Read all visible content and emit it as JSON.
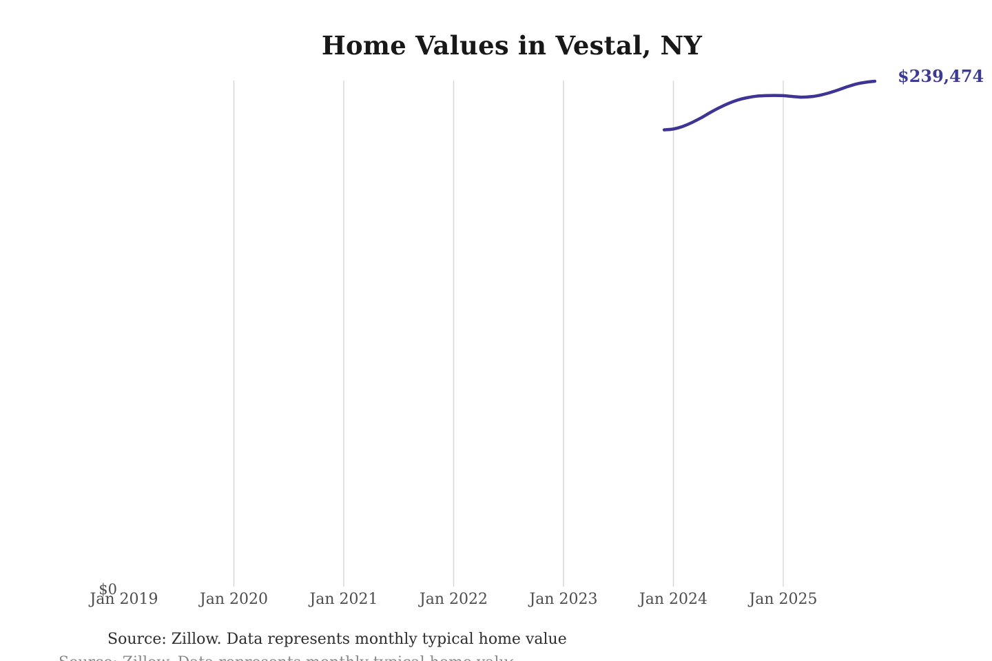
{
  "chart_data": {
    "type": "line",
    "title": "Home Values in Vestal, NY",
    "grid": "vertical-only",
    "legend": "none",
    "x_axis": {
      "ticks": [
        {
          "label": "Jan 2019",
          "month": "2019-01",
          "gridline": false
        },
        {
          "label": "Jan 2020",
          "month": "2020-01",
          "gridline": true
        },
        {
          "label": "Jan 2021",
          "month": "2021-01",
          "gridline": true
        },
        {
          "label": "Jan 2022",
          "month": "2022-01",
          "gridline": true
        },
        {
          "label": "Jan 2023",
          "month": "2023-01",
          "gridline": true
        },
        {
          "label": "Jan 2024",
          "month": "2024-01",
          "gridline": true
        },
        {
          "label": "Jan 2025",
          "month": "2025-01",
          "gridline": true
        }
      ]
    },
    "y_axis": {
      "ticks": [
        {
          "label": "$0",
          "value": 0
        }
      ],
      "range": [
        0,
        240000
      ]
    },
    "series": [
      {
        "name": "Monthly typical home value",
        "color": "#3d3494",
        "x": [
          "2023-12",
          "2024-01",
          "2024-02",
          "2024-03",
          "2024-04",
          "2024-05",
          "2024-06",
          "2024-07",
          "2024-08",
          "2024-09",
          "2024-10",
          "2024-11",
          "2024-12",
          "2025-01",
          "2025-02",
          "2025-03",
          "2025-04",
          "2025-05",
          "2025-06",
          "2025-07",
          "2025-08",
          "2025-09",
          "2025-10",
          "2025-11"
        ],
        "values": [
          216600,
          217000,
          218200,
          220000,
          222200,
          224700,
          227000,
          229000,
          230600,
          231700,
          232400,
          232700,
          232800,
          232700,
          232300,
          232000,
          232200,
          232900,
          234000,
          235400,
          236900,
          238200,
          239000,
          239474
        ]
      }
    ],
    "end_label": {
      "text": "$239,474",
      "value": 239474,
      "color": "#3d3a94"
    },
    "colors": {
      "gridline": "#d8d8d8",
      "axis_text": "#4d4d4d",
      "title_text": "#181818"
    }
  },
  "footer": {
    "source_note": "Source: Zillow. Data represents monthly typical home value"
  }
}
